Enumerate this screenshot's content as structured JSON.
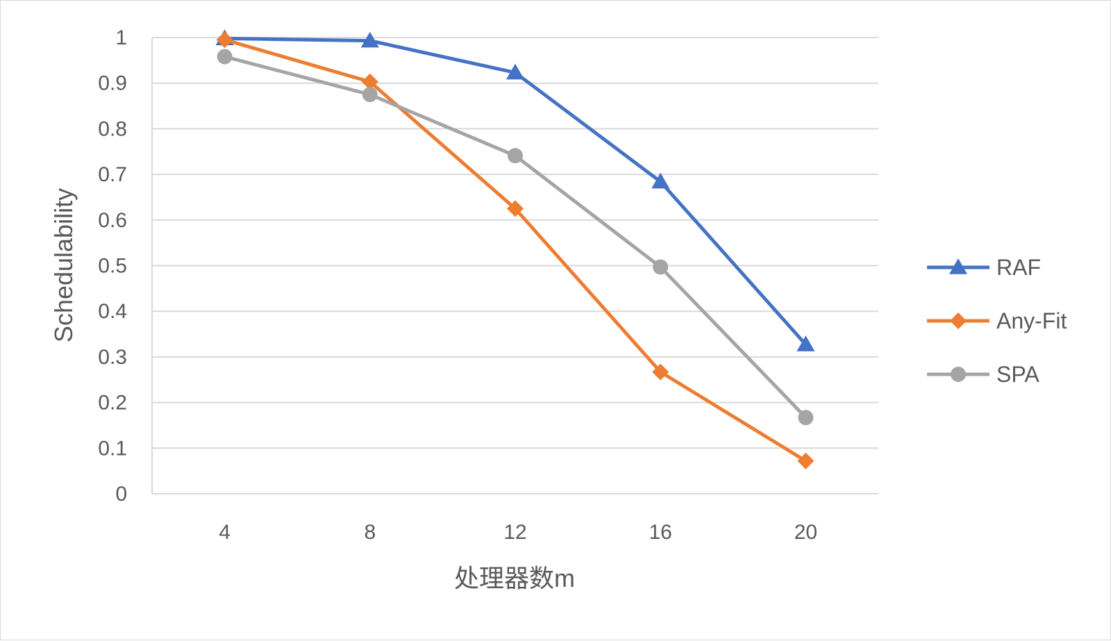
{
  "chart_data": {
    "type": "line",
    "title": "",
    "xlabel": "处理器数m",
    "ylabel": "Schedulability",
    "categories": [
      "4",
      "8",
      "12",
      "16",
      "20"
    ],
    "ylim": [
      0,
      1
    ],
    "yticks": [
      "0",
      "0.1",
      "0.2",
      "0.3",
      "0.4",
      "0.5",
      "0.6",
      "0.7",
      "0.8",
      "0.9",
      "1"
    ],
    "grid": true,
    "legend_position": "right",
    "series": [
      {
        "name": "RAF",
        "color": "#4472C4",
        "marker": "triangle",
        "values": [
          0.998,
          0.993,
          0.923,
          0.684,
          0.327
        ]
      },
      {
        "name": "Any-Fit",
        "color": "#ED7D31",
        "marker": "diamond",
        "values": [
          0.995,
          0.903,
          0.625,
          0.267,
          0.072
        ]
      },
      {
        "name": "SPA",
        "color": "#A5A5A5",
        "marker": "circle",
        "values": [
          0.958,
          0.875,
          0.741,
          0.497,
          0.167
        ]
      }
    ]
  }
}
